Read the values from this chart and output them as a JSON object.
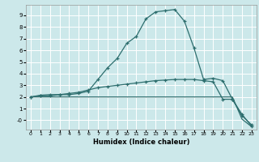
{
  "xlabel": "Humidex (Indice chaleur)",
  "bg_color": "#cce8ea",
  "grid_color": "#ffffff",
  "line_color": "#2d6e6e",
  "xlim": [
    -0.5,
    23.5
  ],
  "ylim": [
    -0.8,
    9.9
  ],
  "xticks": [
    0,
    1,
    2,
    3,
    4,
    5,
    6,
    7,
    8,
    9,
    10,
    11,
    12,
    13,
    14,
    15,
    16,
    17,
    18,
    19,
    20,
    21,
    22,
    23
  ],
  "yticks": [
    0,
    1,
    2,
    3,
    4,
    5,
    6,
    7,
    8,
    9
  ],
  "line1_x": [
    0,
    1,
    2,
    3,
    4,
    5,
    6,
    7,
    8,
    9,
    10,
    11,
    12,
    13,
    14,
    15,
    16,
    17,
    18,
    19,
    20,
    21,
    22,
    23
  ],
  "line1_y": [
    2.0,
    2.15,
    2.2,
    2.2,
    2.2,
    2.3,
    2.5,
    3.5,
    4.5,
    5.3,
    6.6,
    7.2,
    8.7,
    9.3,
    9.4,
    9.5,
    8.5,
    6.2,
    3.5,
    3.6,
    3.4,
    1.8,
    0.4,
    -0.4
  ],
  "line2_x": [
    0,
    1,
    2,
    3,
    4,
    5,
    6,
    7,
    8,
    9,
    10,
    11,
    12,
    13,
    14,
    15,
    16,
    17,
    18,
    19,
    20,
    21,
    22,
    23
  ],
  "line2_y": [
    2.0,
    2.1,
    2.1,
    2.2,
    2.3,
    2.4,
    2.6,
    2.8,
    2.9,
    3.0,
    3.1,
    3.2,
    3.3,
    3.4,
    3.45,
    3.5,
    3.5,
    3.5,
    3.4,
    3.3,
    1.8,
    1.8,
    0.5,
    -0.5
  ],
  "line3_x": [
    0,
    1,
    2,
    3,
    4,
    5,
    6,
    7,
    8,
    9,
    10,
    11,
    12,
    13,
    14,
    15,
    16,
    17,
    18,
    19,
    20,
    21,
    22,
    23
  ],
  "line3_y": [
    2.0,
    2.0,
    2.0,
    2.0,
    2.0,
    2.0,
    2.0,
    2.0,
    2.0,
    2.0,
    2.0,
    2.0,
    2.0,
    2.0,
    2.0,
    2.0,
    2.0,
    2.0,
    2.0,
    2.0,
    2.0,
    2.0,
    0.1,
    -0.55
  ]
}
